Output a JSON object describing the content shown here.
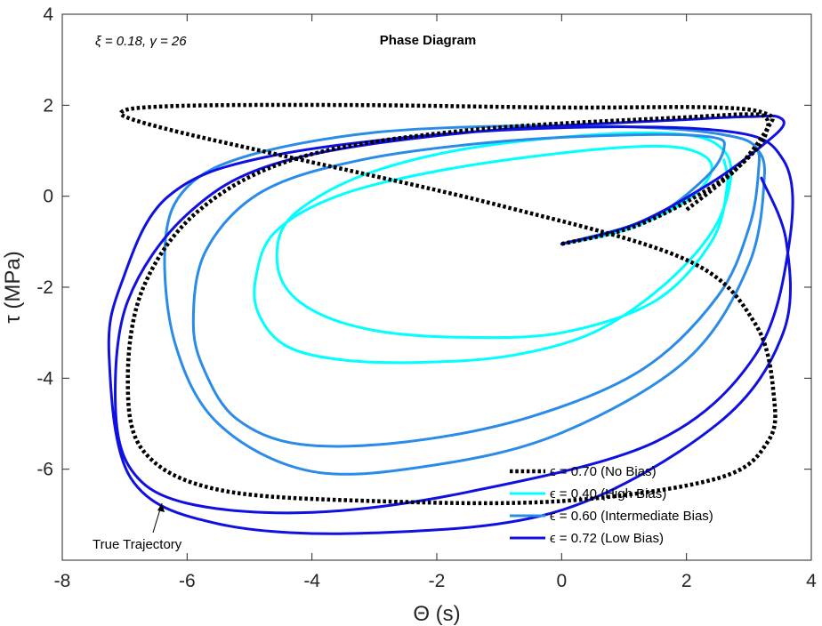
{
  "chart_data": {
    "type": "line",
    "title": "Phase Diagram",
    "params_text": "ξ = 0.18, γ = 26",
    "xlabel": "Θ (s)",
    "ylabel": "τ (MPa)",
    "xlim": [
      -8,
      4
    ],
    "ylim": [
      -8,
      4
    ],
    "xticks": [
      -8,
      -6,
      -4,
      -2,
      0,
      2,
      4
    ],
    "yticks": [
      -6,
      -4,
      -2,
      0,
      2,
      4
    ],
    "grid": false,
    "legend_position": "bottom-right",
    "annotation": {
      "text": "True Trajectory",
      "x": -7.1,
      "y": -7.85
    },
    "series": [
      {
        "name": "ϵ = 0.70 (No Bias)",
        "color": "#000000",
        "style": "dotted",
        "x": [
          0,
          1.2,
          2.4,
          3.1,
          3.3,
          3.25,
          3.0,
          2.2,
          -1.5,
          -4.2,
          -5.8,
          -6.7,
          -6.95,
          -6.7,
          -5.5,
          -3.0,
          0.0,
          2.5,
          3.3,
          3.4,
          3.1,
          2.0,
          -1.0,
          -4.5,
          -6.1,
          -6.9,
          -7.05,
          -6.7,
          -5.5,
          -3.0,
          0.0,
          2.5,
          3.3,
          3.3,
          2.8,
          2.0
        ],
        "y": [
          -1.05,
          -0.65,
          0.2,
          1.0,
          1.5,
          1.75,
          1.8,
          1.75,
          1.45,
          0.85,
          -0.3,
          -2.0,
          -4.0,
          -5.6,
          -6.45,
          -6.7,
          -6.7,
          -6.2,
          -5.4,
          -4.4,
          -2.8,
          -1.4,
          -0.2,
          0.9,
          1.4,
          1.7,
          1.85,
          1.95,
          2.0,
          2.0,
          1.95,
          1.95,
          1.8,
          1.5,
          0.6,
          -0.3
        ]
      },
      {
        "name": "ϵ = 0.40 (High Bias)",
        "color": "#00ffff",
        "style": "solid",
        "x": [
          0,
          1.0,
          2.0,
          2.4,
          2.2,
          1.5,
          0.0,
          -2.0,
          -3.6,
          -4.6,
          -4.9,
          -4.85,
          -4.4,
          -3.5,
          -2.2,
          -0.8,
          0.5,
          1.6,
          2.4,
          2.7,
          2.6,
          2.0,
          0.5,
          -1.5,
          -3.0,
          -4.0,
          -4.5,
          -4.5,
          -4.0,
          -3.0,
          -1.6,
          0.0,
          1.5,
          2.4,
          2.65,
          2.6
        ],
        "y": [
          -1.05,
          -0.75,
          -0.1,
          0.55,
          0.95,
          1.1,
          0.95,
          0.55,
          0.0,
          -0.8,
          -1.8,
          -2.6,
          -3.3,
          -3.6,
          -3.65,
          -3.5,
          -3.0,
          -2.0,
          -0.8,
          0.3,
          1.0,
          1.35,
          1.35,
          1.05,
          0.55,
          -0.1,
          -0.8,
          -1.8,
          -2.5,
          -2.95,
          -3.1,
          -3.0,
          -2.3,
          -1.0,
          0.2,
          0.8
        ]
      },
      {
        "name": "ϵ = 0.60 (Intermediate Bias)",
        "color": "#2a8be8",
        "style": "solid",
        "x": [
          0,
          1.4,
          2.3,
          2.6,
          2.4,
          1.2,
          -1.0,
          -3.2,
          -4.8,
          -5.7,
          -5.9,
          -5.7,
          -5.2,
          -4.2,
          -2.5,
          -0.5,
          1.3,
          2.5,
          3.0,
          3.15,
          3.1,
          2.6,
          1.5,
          -0.5,
          -3.0,
          -5.0,
          -6.0,
          -6.35,
          -6.2,
          -5.5,
          -4.0,
          -2.0,
          0.0,
          2.0,
          3.0,
          3.25,
          3.1
        ],
        "y": [
          -1.05,
          -0.5,
          0.4,
          1.05,
          1.3,
          1.35,
          1.2,
          0.8,
          0.1,
          -1.2,
          -2.8,
          -3.9,
          -4.9,
          -5.45,
          -5.4,
          -4.85,
          -3.8,
          -2.2,
          -0.7,
          0.5,
          1.1,
          1.35,
          1.5,
          1.55,
          1.4,
          0.9,
          0.2,
          -1.0,
          -3.2,
          -5.0,
          -6.05,
          -5.9,
          -5.2,
          -3.6,
          -1.5,
          0.5,
          1.1
        ]
      },
      {
        "name": "ϵ = 0.72 (Low Bias)",
        "color": "#1010e0",
        "style": "solid",
        "x": [
          0,
          1.2,
          2.4,
          3.2,
          3.55,
          3.45,
          3.1,
          2.2,
          -1.5,
          -4.5,
          -6.0,
          -6.95,
          -7.15,
          -6.9,
          -6.0,
          -4.0,
          -1.5,
          1.5,
          3.1,
          3.65,
          3.55,
          2.5,
          -1.0,
          -4.6,
          -6.3,
          -7.05,
          -7.25,
          -6.9,
          -5.5,
          -3.0,
          0.0,
          2.5,
          3.55,
          3.6,
          3.2
        ],
        "y": [
          -1.05,
          -0.6,
          0.3,
          1.1,
          1.55,
          1.75,
          1.75,
          1.7,
          1.4,
          0.75,
          -0.4,
          -2.3,
          -4.5,
          -6.0,
          -6.75,
          -6.95,
          -6.5,
          -5.4,
          -3.5,
          -1.0,
          0.8,
          1.45,
          1.45,
          0.9,
          0.0,
          -1.9,
          -3.5,
          -6.2,
          -7.2,
          -7.4,
          -6.9,
          -5.0,
          -3.0,
          -1.0,
          0.4
        ]
      }
    ]
  }
}
